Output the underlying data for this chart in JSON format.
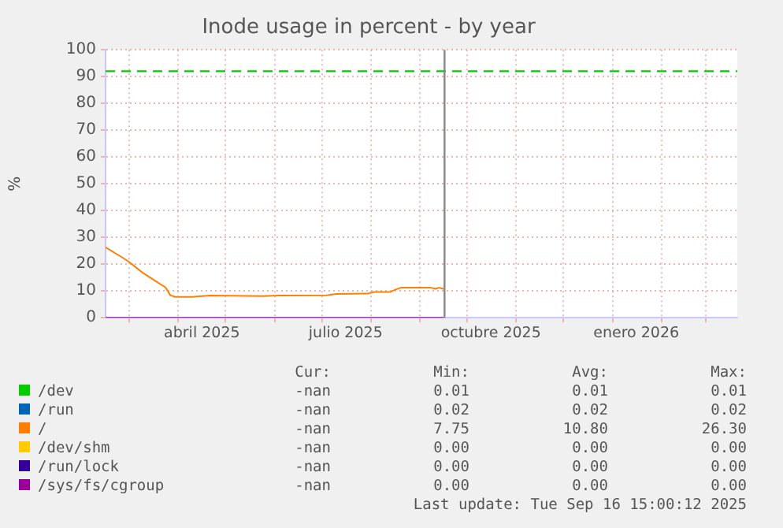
{
  "chart_data": {
    "type": "line",
    "title": "Inode usage in percent - by year",
    "ylabel": "%",
    "xlim": [
      "2025-02-14",
      "2026-03-21"
    ],
    "ylim": [
      0,
      100
    ],
    "yticks": [
      0,
      10,
      20,
      30,
      40,
      50,
      60,
      70,
      80,
      90,
      100
    ],
    "xticks": [
      {
        "value": "2025-03-01",
        "label": null
      },
      {
        "value": "2025-04-01",
        "label": null
      },
      {
        "value": "2025-04-16",
        "label": "abril 2025"
      },
      {
        "value": "2025-05-01",
        "label": null
      },
      {
        "value": "2025-06-01",
        "label": null
      },
      {
        "value": "2025-07-01",
        "label": null
      },
      {
        "value": "2025-07-16",
        "label": "julio 2025"
      },
      {
        "value": "2025-08-01",
        "label": null
      },
      {
        "value": "2025-09-01",
        "label": null
      },
      {
        "value": "2025-10-01",
        "label": null
      },
      {
        "value": "2025-10-16",
        "label": "octubre 2025"
      },
      {
        "value": "2025-11-01",
        "label": null
      },
      {
        "value": "2025-12-01",
        "label": null
      },
      {
        "value": "2026-01-01",
        "label": null
      },
      {
        "value": "2026-01-16",
        "label": "enero 2026"
      },
      {
        "value": "2026-02-01",
        "label": null
      },
      {
        "value": "2026-03-01",
        "label": null
      }
    ],
    "grid": true,
    "legend": "bottom",
    "line_style": "solid",
    "marker": "none",
    "series": [
      {
        "name": "/dev",
        "color": "#00cc00"
      },
      {
        "name": "/run",
        "color": "#0066b3"
      },
      {
        "name": "/",
        "color": "#ff8000",
        "x": [
          "2025-02-14",
          "2025-02-24",
          "2025-03-01",
          "2025-03-09",
          "2025-03-19",
          "2025-03-24",
          "2025-03-27",
          "2025-03-30",
          "2025-04-10",
          "2025-04-21",
          "2025-05-25",
          "2025-06-04",
          "2025-07-04",
          "2025-07-10",
          "2025-07-30",
          "2025-08-03",
          "2025-08-13",
          "2025-08-17",
          "2025-08-20",
          "2025-09-08",
          "2025-09-11",
          "2025-09-13",
          "2025-09-16"
        ],
        "values": [
          26.3,
          22.7,
          20.8,
          17,
          13.2,
          11.3,
          8.4,
          7.8,
          7.75,
          8.3,
          8.1,
          8.3,
          8.4,
          8.9,
          9.0,
          9.6,
          9.6,
          10.6,
          11.2,
          11.2,
          10.8,
          11.2,
          10.8
        ]
      },
      {
        "name": "/dev/shm",
        "color": "#ffcc00"
      },
      {
        "name": "/run/lock",
        "color": "#330099"
      },
      {
        "name": "/sys/fs/cgroup",
        "color": "#990099",
        "x": [
          "2025-02-14",
          "2025-09-16"
        ],
        "values": [
          0,
          0
        ]
      }
    ],
    "ref_lines": [
      {
        "axis": "y",
        "value": 92,
        "color": "#00cc00",
        "line_style": "dashed"
      },
      {
        "axis": "x",
        "value": "2025-09-16T15:00",
        "color": "#888888",
        "line_style": "solid"
      }
    ],
    "annotations": [
      "Cur:",
      "Min:",
      "Avg:",
      "Max:",
      "-nan",
      "0.01",
      "0.01",
      "0.01",
      "-nan",
      "0.02",
      "0.02",
      "0.02",
      "-nan",
      "7.75",
      "10.80",
      "26.30",
      "-nan",
      "0.00",
      "0.00",
      "0.00",
      "-nan",
      "0.00",
      "0.00",
      "0.00",
      "-nan",
      "0.00",
      "0.00",
      "0.00",
      "Last update: Tue Sep 16 15:00:12 2025"
    ]
  }
}
